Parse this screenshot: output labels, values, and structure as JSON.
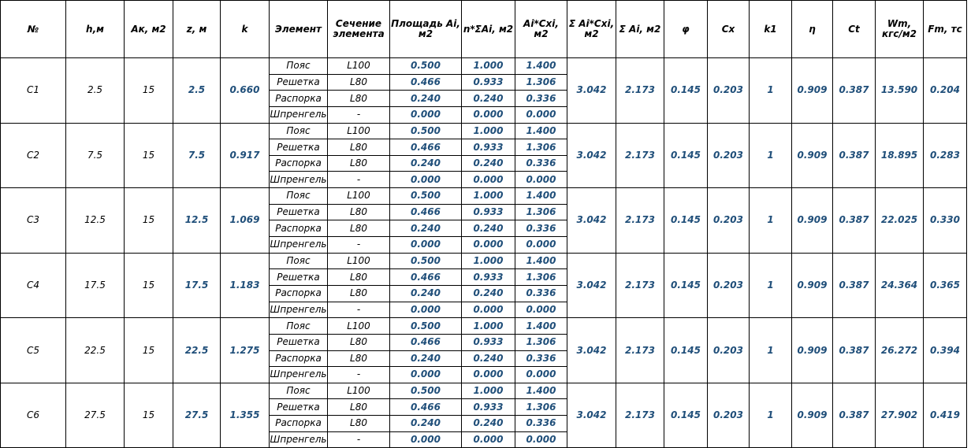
{
  "headers": [
    "№",
    "h,м",
    "Ак, м2",
    "z, м",
    "k",
    "Элемент",
    "Сечение элемента",
    "Площадь Ai, м2",
    "n*ΣAi, м2",
    "Ai*Cxi, м2",
    "Σ Ai*Cxi, м2",
    "Σ Ai, м2",
    "φ",
    "Cx",
    "k1",
    "η",
    "Ct",
    "Wm, кгс/м2",
    "Fm, тс"
  ],
  "rows": [
    {
      "no": "С1",
      "h": "2.5",
      "ak": "15",
      "z": "2.5",
      "k": "0.660",
      "sum_acx": "3.042",
      "sum_a": "2.173",
      "phi": "0.145",
      "cx": "0.203",
      "k1": "1",
      "eta": "0.909",
      "ct": "0.387",
      "wm": "13.590",
      "fm": "0.204",
      "elements": [
        {
          "name": "Пояс",
          "section": "L100",
          "area": "0.500",
          "n_sum": "1.000",
          "acx": "1.400"
        },
        {
          "name": "Решетка",
          "section": "L80",
          "area": "0.466",
          "n_sum": "0.933",
          "acx": "1.306"
        },
        {
          "name": "Распорка",
          "section": "L80",
          "area": "0.240",
          "n_sum": "0.240",
          "acx": "0.336"
        },
        {
          "name": "Шпренгель",
          "section": "-",
          "area": "0.000",
          "n_sum": "0.000",
          "acx": "0.000"
        }
      ]
    },
    {
      "no": "С2",
      "h": "7.5",
      "ak": "15",
      "z": "7.5",
      "k": "0.917",
      "sum_acx": "3.042",
      "sum_a": "2.173",
      "phi": "0.145",
      "cx": "0.203",
      "k1": "1",
      "eta": "0.909",
      "ct": "0.387",
      "wm": "18.895",
      "fm": "0.283",
      "elements": [
        {
          "name": "Пояс",
          "section": "L100",
          "area": "0.500",
          "n_sum": "1.000",
          "acx": "1.400"
        },
        {
          "name": "Решетка",
          "section": "L80",
          "area": "0.466",
          "n_sum": "0.933",
          "acx": "1.306"
        },
        {
          "name": "Распорка",
          "section": "L80",
          "area": "0.240",
          "n_sum": "0.240",
          "acx": "0.336"
        },
        {
          "name": "Шпренгель",
          "section": "-",
          "area": "0.000",
          "n_sum": "0.000",
          "acx": "0.000"
        }
      ]
    },
    {
      "no": "С3",
      "h": "12.5",
      "ak": "15",
      "z": "12.5",
      "k": "1.069",
      "sum_acx": "3.042",
      "sum_a": "2.173",
      "phi": "0.145",
      "cx": "0.203",
      "k1": "1",
      "eta": "0.909",
      "ct": "0.387",
      "wm": "22.025",
      "fm": "0.330",
      "elements": [
        {
          "name": "Пояс",
          "section": "L100",
          "area": "0.500",
          "n_sum": "1.000",
          "acx": "1.400"
        },
        {
          "name": "Решетка",
          "section": "L80",
          "area": "0.466",
          "n_sum": "0.933",
          "acx": "1.306"
        },
        {
          "name": "Распорка",
          "section": "L80",
          "area": "0.240",
          "n_sum": "0.240",
          "acx": "0.336"
        },
        {
          "name": "Шпренгель",
          "section": "-",
          "area": "0.000",
          "n_sum": "0.000",
          "acx": "0.000"
        }
      ]
    },
    {
      "no": "С4",
      "h": "17.5",
      "ak": "15",
      "z": "17.5",
      "k": "1.183",
      "sum_acx": "3.042",
      "sum_a": "2.173",
      "phi": "0.145",
      "cx": "0.203",
      "k1": "1",
      "eta": "0.909",
      "ct": "0.387",
      "wm": "24.364",
      "fm": "0.365",
      "elements": [
        {
          "name": "Пояс",
          "section": "L100",
          "area": "0.500",
          "n_sum": "1.000",
          "acx": "1.400"
        },
        {
          "name": "Решетка",
          "section": "L80",
          "area": "0.466",
          "n_sum": "0.933",
          "acx": "1.306"
        },
        {
          "name": "Распорка",
          "section": "L80",
          "area": "0.240",
          "n_sum": "0.240",
          "acx": "0.336"
        },
        {
          "name": "Шпренгель",
          "section": "-",
          "area": "0.000",
          "n_sum": "0.000",
          "acx": "0.000"
        }
      ]
    },
    {
      "no": "С5",
      "h": "22.5",
      "ak": "15",
      "z": "22.5",
      "k": "1.275",
      "sum_acx": "3.042",
      "sum_a": "2.173",
      "phi": "0.145",
      "cx": "0.203",
      "k1": "1",
      "eta": "0.909",
      "ct": "0.387",
      "wm": "26.272",
      "fm": "0.394",
      "elements": [
        {
          "name": "Пояс",
          "section": "L100",
          "area": "0.500",
          "n_sum": "1.000",
          "acx": "1.400"
        },
        {
          "name": "Решетка",
          "section": "L80",
          "area": "0.466",
          "n_sum": "0.933",
          "acx": "1.306"
        },
        {
          "name": "Распорка",
          "section": "L80",
          "area": "0.240",
          "n_sum": "0.240",
          "acx": "0.336"
        },
        {
          "name": "Шпренгель",
          "section": "-",
          "area": "0.000",
          "n_sum": "0.000",
          "acx": "0.000"
        }
      ]
    },
    {
      "no": "С6",
      "h": "27.5",
      "ak": "15",
      "z": "27.5",
      "k": "1.355",
      "sum_acx": "3.042",
      "sum_a": "2.173",
      "phi": "0.145",
      "cx": "0.203",
      "k1": "1",
      "eta": "0.909",
      "ct": "0.387",
      "wm": "27.902",
      "fm": "0.419",
      "elements": [
        {
          "name": "Пояс",
          "section": "L100",
          "area": "0.500",
          "n_sum": "1.000",
          "acx": "1.400"
        },
        {
          "name": "Решетка",
          "section": "L80",
          "area": "0.466",
          "n_sum": "0.933",
          "acx": "1.306"
        },
        {
          "name": "Распорка",
          "section": "L80",
          "area": "0.240",
          "n_sum": "0.240",
          "acx": "0.336"
        },
        {
          "name": "Шпренгель",
          "section": "-",
          "area": "0.000",
          "n_sum": "0.000",
          "acx": "0.000"
        }
      ]
    }
  ]
}
